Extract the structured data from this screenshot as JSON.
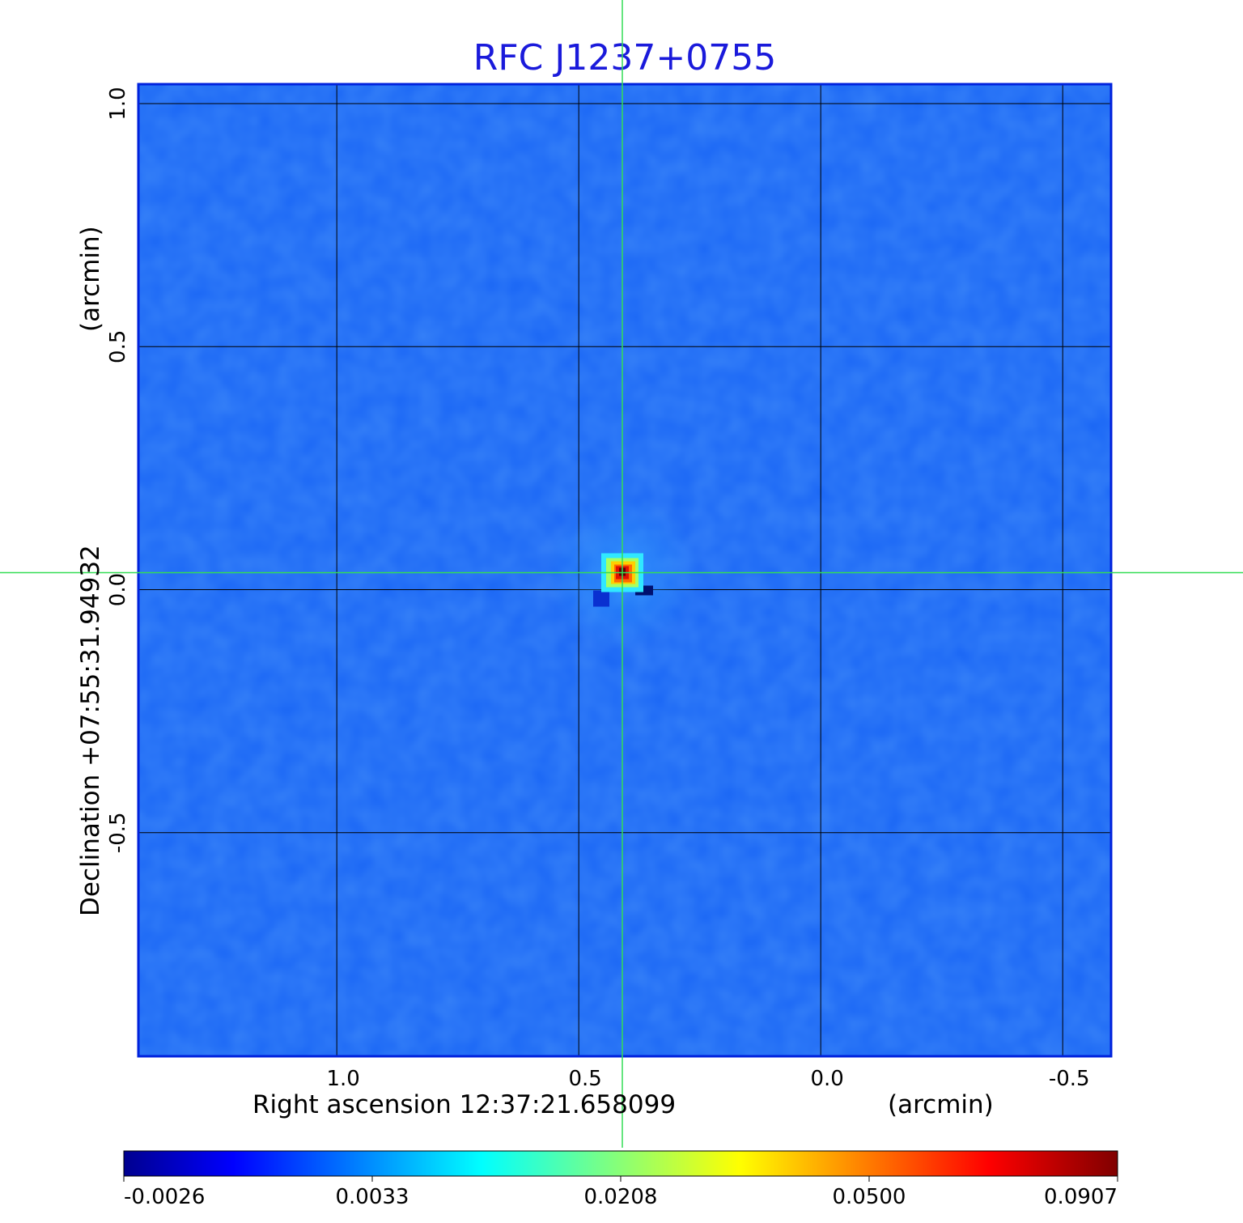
{
  "chart_data": {
    "type": "heatmap",
    "title": "RFC J1237+0755",
    "xlabel": "Right ascension  12:37:21.658099",
    "xunit": "(arcmin)",
    "ylabel": "Declination  +07:55:31.94932",
    "yunit": "(arcmin)",
    "xlim": [
      1.41,
      -0.6
    ],
    "ylim": [
      -0.96,
      1.04
    ],
    "x_ticks": [
      {
        "value": 1.0,
        "label": "1.0"
      },
      {
        "value": 0.5,
        "label": "0.5"
      },
      {
        "value": 0.0,
        "label": "0.0"
      },
      {
        "value": -0.5,
        "label": "-0.5"
      }
    ],
    "y_ticks": [
      {
        "value": 1.0,
        "label": "1.0"
      },
      {
        "value": 0.5,
        "label": "0.5"
      },
      {
        "value": 0.0,
        "label": "0.0"
      },
      {
        "value": -0.5,
        "label": "-0.5"
      }
    ],
    "grid": true,
    "crosshair": {
      "x": 0.41,
      "y": 0.035,
      "color": "#33dd55"
    },
    "source_peak": {
      "x": 0.41,
      "y": 0.035,
      "value": 0.0907
    },
    "colormap": "jet",
    "colorbar": {
      "orientation": "horizontal",
      "ticks": [
        "-0.0026",
        "0.0033",
        "0.0208",
        "0.0500",
        "0.0907"
      ],
      "min": -0.0026,
      "max": 0.0907
    },
    "colors": {
      "title": "#1a1adb",
      "background_field": "#1a66f5",
      "frame": "#0022dd"
    }
  }
}
